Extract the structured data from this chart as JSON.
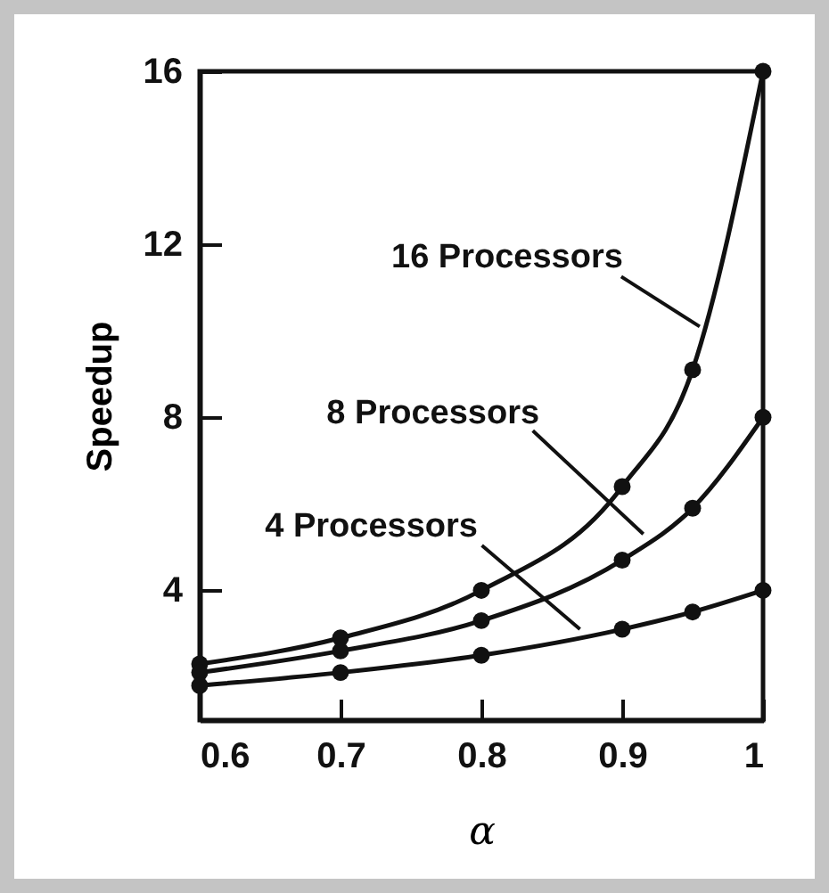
{
  "chart_data": {
    "type": "line",
    "xlabel": "α",
    "ylabel": "Speedup",
    "x": [
      0.6,
      0.7,
      0.8,
      0.9,
      0.95,
      1
    ],
    "series": [
      {
        "color": "#111111",
        "values": [
          2.3,
          2.9,
          4.0,
          6.4,
          9.1,
          16
        ]
      },
      {
        "color": "#111111",
        "values": [
          2.1,
          2.6,
          3.3,
          4.7,
          5.9,
          8
        ]
      },
      {
        "color": "#111111",
        "values": [
          1.8,
          2.1,
          2.5,
          3.1,
          3.5,
          4
        ]
      }
    ],
    "annotations": [
      {
        "text": "16 Processors",
        "x": 0.955,
        "y": 10.1
      },
      {
        "text": "8 Processors",
        "x": 0.915,
        "y": 5.3
      },
      {
        "text": "4 Processors",
        "x": 0.87,
        "y": 3.1
      }
    ],
    "xlim": [
      0.6,
      1
    ],
    "ylim": [
      1,
      16
    ],
    "xticks": [
      0.6,
      0.7,
      0.8,
      0.9,
      1
    ],
    "yticks": [
      4,
      8,
      12,
      16
    ],
    "marker": "circle",
    "line_style": "solid",
    "grid": false,
    "legend": false
  }
}
